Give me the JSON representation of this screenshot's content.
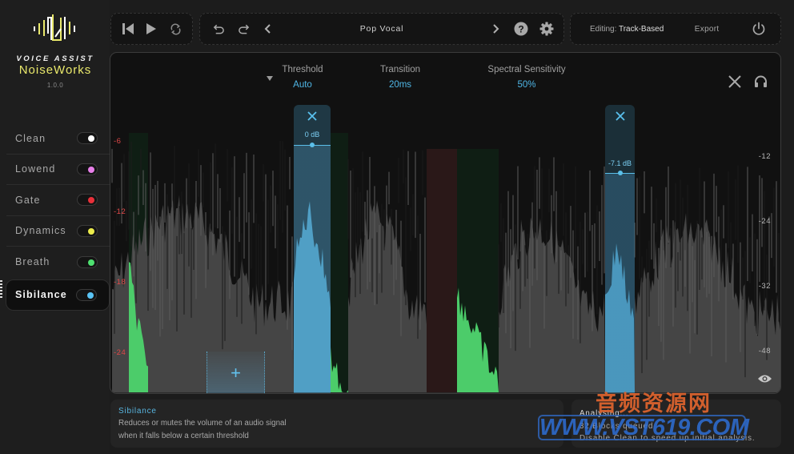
{
  "app": {
    "brand_sub": "VOICE ASSIST",
    "brand_name": "NoiseWorks",
    "version": "1.0.0",
    "colors": {
      "accent_yellow": "#e9e86b",
      "accent_blue": "#4fb6e6",
      "green": "#4ccc6a",
      "axis_red": "#e04848"
    }
  },
  "sidebar": {
    "items": [
      {
        "label": "Clean",
        "dot_color": "#ffffff",
        "active": false
      },
      {
        "label": "Lowend",
        "dot_color": "#e77fe8",
        "active": false
      },
      {
        "label": "Gate",
        "dot_color": "#e8303a",
        "active": false
      },
      {
        "label": "Dynamics",
        "dot_color": "#ecec4c",
        "active": false
      },
      {
        "label": "Breath",
        "dot_color": "#4ee070",
        "active": false
      },
      {
        "label": "Sibilance",
        "dot_color": "#5ac4f5",
        "active": true
      }
    ]
  },
  "toolbar": {
    "transport": {
      "skip_back_icon": "skip-to-start-icon",
      "play_icon": "play-icon",
      "loop_icon": "loop-icon"
    },
    "preset": {
      "undo_icon": "undo-icon",
      "redo_icon": "redo-icon",
      "prev_icon": "chevron-left-icon",
      "name": "Pop Vocal",
      "next_icon": "chevron-right-icon",
      "help_icon": "help-icon",
      "settings_icon": "gear-icon"
    },
    "right": {
      "editing_prefix": "Editing:",
      "editing_mode": "Track-Based",
      "export_label": "Export",
      "power_icon": "power-icon"
    }
  },
  "editor": {
    "params": [
      {
        "label": "Threshold",
        "value": "Auto",
        "has_dropdown": true
      },
      {
        "label": "Transition",
        "value": "20ms"
      },
      {
        "label": "Spectral Sensitivity",
        "value": "50%"
      }
    ],
    "close_icon": "close-icon",
    "listen_icon": "headphones-icon",
    "visibility_icon": "eye-icon",
    "left_axis": [
      "-6",
      "-12",
      "-18",
      "-24"
    ],
    "right_axis": [
      "-12",
      "-24",
      "-32",
      "-48"
    ],
    "bands": [
      {
        "db_label": "0 dB"
      },
      {
        "db_label": "-7.1 dB"
      }
    ],
    "add_band_label": "+"
  },
  "info": {
    "title": "Sibilance",
    "line1": "Reduces or mutes the volume of an audio signal",
    "line2": "when it falls below a certain threshold"
  },
  "status": {
    "line1": "Analysing...",
    "line2": "32 Blocks queued",
    "line3": "Disable Clean to speed up initial analysis."
  },
  "watermark": {
    "cn": "音频资源网",
    "url": "WWW.VST619.COM"
  }
}
